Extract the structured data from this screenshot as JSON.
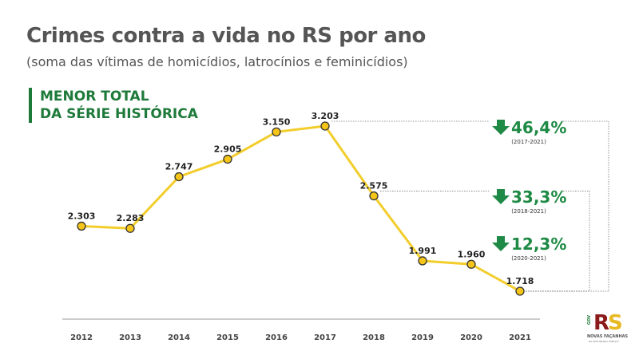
{
  "title": "Crimes contra a vida no RS por ano",
  "subtitle": "(soma das vítimas de homicídios, latrocínios e feminicídios)",
  "badge": {
    "line1": "MENOR TOTAL",
    "line2": "DA SÉRIE HISTÓRICA"
  },
  "colors": {
    "line": "#f2cd2c",
    "marker": "#f5c518",
    "accent": "#1e8a45",
    "text": "#555555"
  },
  "chart_data": {
    "type": "line",
    "title": "Crimes contra a vida no RS por ano",
    "categories": [
      "2012",
      "2013",
      "2014",
      "2015",
      "2016",
      "2017",
      "2018",
      "2019",
      "2020",
      "2021"
    ],
    "values": [
      2303,
      2283,
      2747,
      2905,
      3150,
      3203,
      2575,
      1991,
      1960,
      1718
    ],
    "labels": [
      "2.303",
      "2.283",
      "2.747",
      "2.905",
      "3.150",
      "3.203",
      "2.575",
      "1.991",
      "1.960",
      "1.718"
    ],
    "grid": false,
    "annotations": [
      {
        "icon": "arrow-down-icon",
        "value": "46,4%",
        "period": "(2017-2021)",
        "from": "2017",
        "to": "2021"
      },
      {
        "icon": "arrow-down-icon",
        "value": "33,3%",
        "period": "(2018-2021)",
        "from": "2018",
        "to": "2021"
      },
      {
        "icon": "arrow-down-icon",
        "value": "12,3%",
        "period": "(2020-2021)",
        "from": "2020",
        "to": "2021"
      }
    ]
  },
  "logo": {
    "text": "RS",
    "gov": "GOV",
    "tagline": "NOVAS FAÇANHAS",
    "sub": "NA SEGURANÇA PÚBLICA"
  }
}
